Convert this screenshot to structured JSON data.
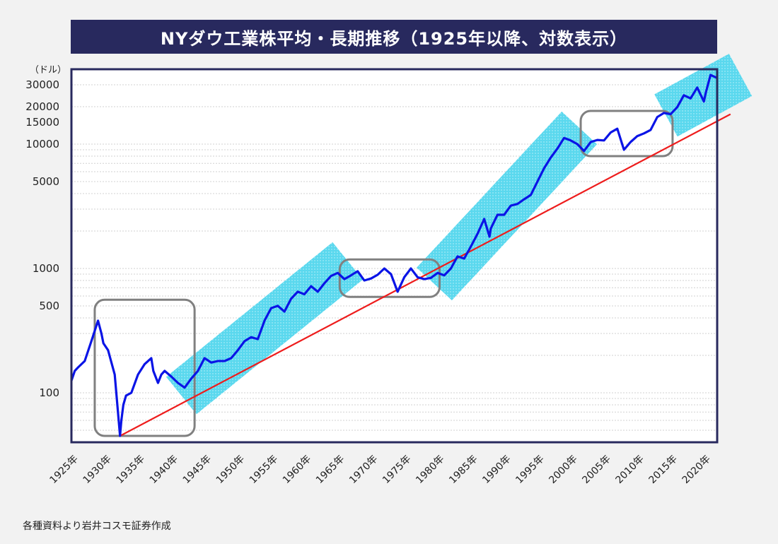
{
  "title": "NYダウ工業株平均・長期推移（1925年以降、対数表示）",
  "source": "各種資料より岩井コスモ証券作成",
  "chart_data": {
    "type": "line",
    "title": "NYダウ工業株平均・長期推移（1925年以降、対数表示）",
    "ylabel": "（ドル）",
    "y_scale": "log",
    "xlim": [
      1925,
      2022
    ],
    "ylim": [
      40,
      40000
    ],
    "grid": true,
    "x_tick_labels": [
      "1925年",
      "1930年",
      "1935年",
      "1940年",
      "1945年",
      "1950年",
      "1955年",
      "1960年",
      "1965年",
      "1970年",
      "1975年",
      "1980年",
      "1985年",
      "1990年",
      "1995年",
      "2000年",
      "2005年",
      "2010年",
      "2015年",
      "2020年"
    ],
    "x_tick_values": [
      1925,
      1930,
      1935,
      1940,
      1945,
      1950,
      1955,
      1960,
      1965,
      1970,
      1975,
      1980,
      1985,
      1990,
      1995,
      2000,
      2005,
      2010,
      2015,
      2020
    ],
    "y_tick_labels": [
      "30000",
      "20000",
      "15000",
      "10000",
      "5000",
      "1000",
      "500",
      "100"
    ],
    "y_tick_values": [
      30000,
      20000,
      15000,
      10000,
      5000,
      1000,
      500,
      100
    ],
    "series": [
      {
        "color": "#0a14e6",
        "x": [
          1925,
          1925.5,
          1926,
          1927,
          1928,
          1929,
          1929.5,
          1929.8,
          1930.5,
          1931.5,
          1932.3,
          1932.5,
          1932.8,
          1933.2,
          1934,
          1935,
          1936,
          1937,
          1937.3,
          1938,
          1938.5,
          1939,
          1940,
          1941,
          1942,
          1943,
          1944,
          1945,
          1946,
          1947,
          1948,
          1949,
          1950,
          1951,
          1952,
          1953,
          1954,
          1955,
          1956,
          1957,
          1958,
          1959,
          1960,
          1961,
          1962,
          1963,
          1964,
          1965,
          1966,
          1967,
          1968,
          1969,
          1970,
          1971,
          1972,
          1973,
          1974,
          1975,
          1976,
          1977,
          1978,
          1979,
          1980,
          1981,
          1982,
          1983,
          1984,
          1985,
          1986,
          1987,
          1987.8,
          1988,
          1989,
          1990,
          1991,
          1992,
          1993,
          1994,
          1995,
          1996,
          1997,
          1998,
          1999,
          2000,
          2001,
          2002,
          2003,
          2004,
          2005,
          2006,
          2007,
          2008,
          2009,
          2010,
          2011,
          2012,
          2013,
          2014,
          2015,
          2016,
          2017,
          2018,
          2019,
          2020,
          2020.3,
          2021,
          2022
        ],
        "y": [
          125,
          150,
          160,
          180,
          260,
          380,
          300,
          250,
          220,
          140,
          45,
          60,
          80,
          95,
          100,
          140,
          170,
          190,
          150,
          120,
          140,
          150,
          135,
          120,
          110,
          130,
          150,
          190,
          175,
          180,
          180,
          190,
          220,
          260,
          280,
          270,
          380,
          480,
          500,
          450,
          570,
          650,
          620,
          720,
          650,
          760,
          870,
          920,
          820,
          880,
          950,
          800,
          830,
          890,
          1000,
          900,
          650,
          850,
          1000,
          850,
          820,
          840,
          920,
          880,
          1000,
          1250,
          1200,
          1500,
          1900,
          2500,
          1800,
          2100,
          2700,
          2700,
          3200,
          3300,
          3600,
          3900,
          5000,
          6400,
          7800,
          9200,
          11200,
          10700,
          10000,
          8800,
          10400,
          10800,
          10700,
          12400,
          13300,
          9000,
          10400,
          11600,
          12200,
          13000,
          16500,
          17800,
          17400,
          19800,
          24700,
          23300,
          28500,
          22000,
          26000,
          36000,
          34000
        ]
      }
    ],
    "trend_line": {
      "color": "#ee1c1c",
      "x": [
        1932.3,
        2024
      ],
      "y": [
        45,
        17400
      ]
    },
    "range_boxes": [
      {
        "x": [
          1928.5,
          1943.5
        ],
        "y": [
          45,
          560
        ],
        "color": "#808080"
      },
      {
        "x": [
          1965.3,
          1980.3
        ],
        "y": [
          590,
          1180
        ],
        "color": "#808080"
      },
      {
        "x": [
          2001.5,
          2015.3
        ],
        "y": [
          8000,
          18500
        ],
        "color": "#808080"
      }
    ],
    "uptrend_bands": [
      {
        "x": [
          1941.5,
          1966.5
        ],
        "y": [
          95,
          1150
        ],
        "color": "#5ad8ee"
      },
      {
        "x": [
          1979.5,
          2001.3
        ],
        "y": [
          750,
          13500
        ],
        "color": "#5ad8ee"
      },
      {
        "x": [
          2014.3,
          2025.5
        ],
        "y": [
          17000,
          36000
        ],
        "color": "#5ad8ee"
      }
    ]
  }
}
